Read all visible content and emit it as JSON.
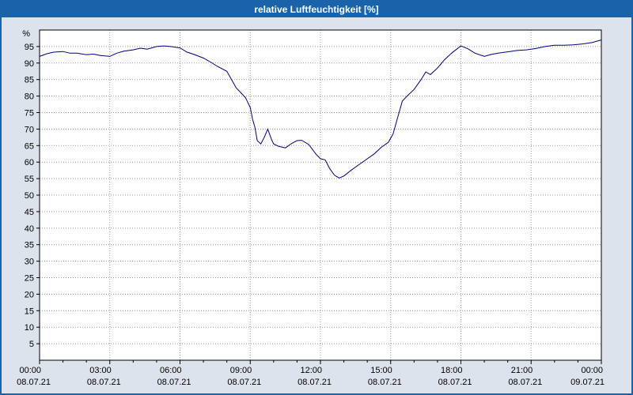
{
  "window": {
    "title": "relative Luftfeuchtigkeit [%]"
  },
  "colors": {
    "titlebar": "#1a63a8",
    "frame_border": "#1a63a8",
    "background": "#dce3ed",
    "plot_background": "#ffffff",
    "grid": "#9a9a9a",
    "axis": "#000000",
    "line": "#000080"
  },
  "chart_data": {
    "type": "line",
    "title": "relative Luftfeuchtigkeit [%]",
    "xlabel": "",
    "ylabel": "%",
    "ylim": [
      0,
      100
    ],
    "yticks": [
      5,
      10,
      15,
      20,
      25,
      30,
      35,
      40,
      45,
      50,
      55,
      60,
      65,
      70,
      75,
      80,
      85,
      90,
      95
    ],
    "xticks": [
      {
        "time": "00:00",
        "date": "08.07.21"
      },
      {
        "time": "03:00",
        "date": "08.07.21"
      },
      {
        "time": "06:00",
        "date": "08.07.21"
      },
      {
        "time": "09:00",
        "date": "08.07.21"
      },
      {
        "time": "12:00",
        "date": "08.07.21"
      },
      {
        "time": "15:00",
        "date": "08.07.21"
      },
      {
        "time": "18:00",
        "date": "08.07.21"
      },
      {
        "time": "21:00",
        "date": "08.07.21"
      },
      {
        "time": "00:00",
        "date": "09.07.21"
      }
    ],
    "grid": true,
    "legend_position": "none",
    "series": [
      {
        "name": "relative Luftfeuchtigkeit",
        "color": "#000080",
        "points": [
          [
            0,
            92
          ],
          [
            0.3,
            92.8
          ],
          [
            0.6,
            93.3
          ],
          [
            1,
            93.5
          ],
          [
            1.3,
            93
          ],
          [
            1.6,
            93
          ],
          [
            2,
            92.5
          ],
          [
            2.3,
            92.7
          ],
          [
            2.6,
            92.3
          ],
          [
            3,
            92
          ],
          [
            3.3,
            93
          ],
          [
            3.6,
            93.6
          ],
          [
            4,
            94
          ],
          [
            4.3,
            94.5
          ],
          [
            4.6,
            94.2
          ],
          [
            5,
            95
          ],
          [
            5.3,
            95.2
          ],
          [
            5.6,
            95
          ],
          [
            6,
            94.6
          ],
          [
            6.3,
            93.3
          ],
          [
            6.6,
            92.6
          ],
          [
            7,
            91.5
          ],
          [
            7.3,
            90.3
          ],
          [
            7.6,
            89
          ],
          [
            8,
            87.5
          ],
          [
            8.2,
            85
          ],
          [
            8.4,
            82.5
          ],
          [
            8.6,
            81
          ],
          [
            8.8,
            79.5
          ],
          [
            9,
            76.5
          ],
          [
            9.1,
            73
          ],
          [
            9.2,
            70.5
          ],
          [
            9.3,
            66.5
          ],
          [
            9.45,
            65.5
          ],
          [
            9.6,
            67.5
          ],
          [
            9.75,
            70
          ],
          [
            9.9,
            67
          ],
          [
            10,
            65.5
          ],
          [
            10.2,
            64.8
          ],
          [
            10.5,
            64.3
          ],
          [
            10.8,
            65.8
          ],
          [
            11,
            66.5
          ],
          [
            11.2,
            66.6
          ],
          [
            11.5,
            65.3
          ],
          [
            11.8,
            62.5
          ],
          [
            12,
            61
          ],
          [
            12.2,
            60.7
          ],
          [
            12.4,
            58
          ],
          [
            12.6,
            56
          ],
          [
            12.8,
            55.2
          ],
          [
            13,
            55.8
          ],
          [
            13.3,
            57.5
          ],
          [
            13.6,
            59
          ],
          [
            14,
            61
          ],
          [
            14.3,
            62.5
          ],
          [
            14.6,
            64.5
          ],
          [
            14.9,
            66
          ],
          [
            15.1,
            68.5
          ],
          [
            15.3,
            73.5
          ],
          [
            15.5,
            78.5
          ],
          [
            15.7,
            80
          ],
          [
            16,
            82
          ],
          [
            16.3,
            85
          ],
          [
            16.5,
            87.3
          ],
          [
            16.7,
            86.5
          ],
          [
            17,
            88.5
          ],
          [
            17.3,
            91
          ],
          [
            17.6,
            93
          ],
          [
            18,
            95.2
          ],
          [
            18.3,
            94.3
          ],
          [
            18.6,
            93
          ],
          [
            19,
            92
          ],
          [
            19.3,
            92.6
          ],
          [
            19.6,
            93
          ],
          [
            20,
            93.4
          ],
          [
            20.4,
            93.8
          ],
          [
            20.8,
            94
          ],
          [
            21.2,
            94.4
          ],
          [
            21.6,
            95
          ],
          [
            22,
            95.4
          ],
          [
            22.4,
            95.4
          ],
          [
            22.8,
            95.5
          ],
          [
            23.2,
            95.8
          ],
          [
            23.6,
            96.2
          ],
          [
            24,
            97
          ]
        ]
      }
    ]
  }
}
